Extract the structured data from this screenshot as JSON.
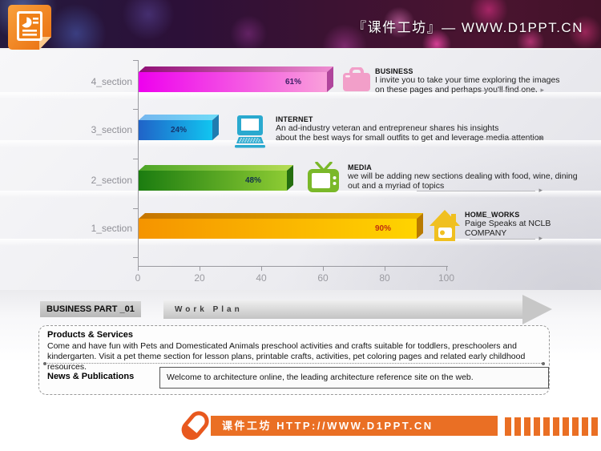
{
  "banner": {
    "brand_text": "『课件工坊』— WWW.D1PPT.CN"
  },
  "chart_data": {
    "type": "bar",
    "orientation": "horizontal",
    "title": "",
    "xlabel": "",
    "ylabel": "",
    "xlim": [
      0,
      100
    ],
    "x_ticks": [
      "0",
      "20",
      "40",
      "60",
      "80",
      "100"
    ],
    "grid": false,
    "axis_color": "#9a9aa0",
    "categories": [
      "4_section",
      "3_section",
      "2_section",
      "1_section"
    ],
    "values": [
      61,
      24,
      48,
      90
    ],
    "series": [
      {
        "category": "4_section",
        "value": 61,
        "label": "61%",
        "label_color": "#3d2066",
        "front": [
          "#ee00ee",
          "#f9a0da"
        ],
        "top": [
          "#8e0e74",
          "#ef8ed2"
        ],
        "cap": "#b0459c"
      },
      {
        "category": "3_section",
        "value": 24,
        "label": "24%",
        "label_color": "#16356e",
        "front": [
          "#2063c8",
          "#11c5f0"
        ],
        "top": [
          "#74b5ee",
          "#70dcf8"
        ],
        "cap": "#1f7cb0"
      },
      {
        "category": "2_section",
        "value": 48,
        "label": "48%",
        "label_color": "#12324a",
        "front": [
          "#1b7c10",
          "#8dcb33"
        ],
        "top": [
          "#4ba426",
          "#b7dd55"
        ],
        "cap": "#256e10"
      },
      {
        "category": "1_section",
        "value": 90,
        "label": "90%",
        "label_color": "#c03010",
        "front": [
          "#f59400",
          "#ffd400"
        ],
        "top": [
          "#c57500",
          "#edb800"
        ],
        "cap": "#b97a00"
      }
    ]
  },
  "annotations": [
    {
      "icon": "briefcase-icon",
      "icon_color": "#f29fc9",
      "title": "BUSINESS",
      "line1": "I invite you to take your time exploring the images",
      "line2": "on these pages and perhaps you'll find one."
    },
    {
      "icon": "computer-icon",
      "icon_color": "#2aa9cf",
      "title": "INTERNET",
      "line1": "An ad-industry veteran and entrepreneur shares his insights",
      "line2": "about the best ways for small outfits to get and leverage media attention"
    },
    {
      "icon": "tv-icon",
      "icon_color": "#7ab829",
      "title": "MEDIA",
      "line1": "we will be adding new sections dealing with food, wine, dining",
      "line2": "out and a myriad of topics"
    },
    {
      "icon": "house-icon",
      "icon_color": "#f0c020",
      "title": "HOME_WORKS",
      "line1": "Paige Speaks at NCLB",
      "line2": "COMPANY"
    }
  ],
  "section_header": {
    "label": "BUSINESS PART _01",
    "arrow_text": "Work Plan"
  },
  "info_box": {
    "products_title": "Products & Services",
    "products_text": "Come and have fun with Pets and Domesticated Animals preschool activities and crafts suitable for toddlers, preschoolers and kindergarten.  Visit a pet theme section for lesson plans, printable crafts, activities, pet coloring pages and related early childhood resources.",
    "news_title": "News & Publications",
    "news_text": "Welcome to architecture online, the leading architecture reference site on the web."
  },
  "footer": {
    "brand_text": "课件工坊 HTTP://WWW.D1PPT.CN",
    "accent_color": "#ea6f24",
    "barcode_bar_count": 11
  }
}
